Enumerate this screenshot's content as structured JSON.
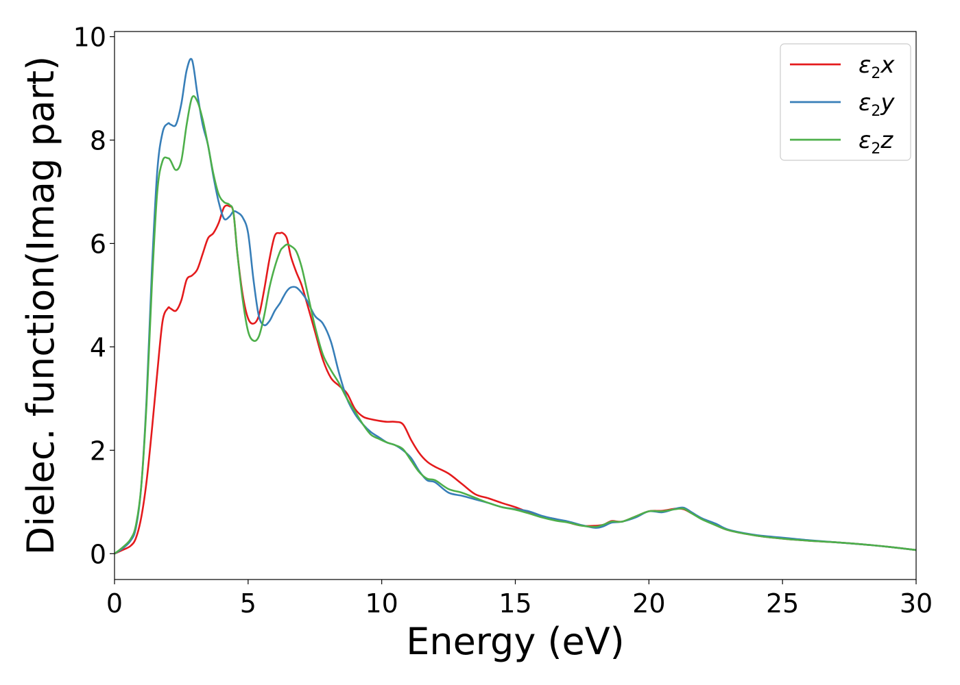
{
  "chart_data": {
    "type": "line",
    "title": "",
    "xlabel": "Energy (eV)",
    "ylabel": "Dielec. function(Imag part)",
    "xlim": [
      0,
      30
    ],
    "ylim": [
      -0.5,
      10.1
    ],
    "xticks": [
      0,
      5,
      10,
      15,
      20,
      25,
      30
    ],
    "yticks": [
      0,
      2,
      4,
      6,
      8,
      10
    ],
    "grid": false,
    "legend_position": "top-right",
    "series": [
      {
        "name": "ε2x",
        "legend": {
          "base": "ε",
          "sub": "2",
          "suffix": "x"
        },
        "color": "#e41a1c",
        "x": [
          0,
          0.3,
          0.6,
          0.8,
          1.0,
          1.2,
          1.4,
          1.6,
          1.8,
          2.0,
          2.1,
          2.3,
          2.5,
          2.7,
          2.9,
          3.1,
          3.3,
          3.5,
          3.7,
          3.9,
          4.1,
          4.3,
          4.45,
          4.6,
          4.8,
          5.0,
          5.2,
          5.4,
          5.6,
          5.8,
          6.0,
          6.2,
          6.3,
          6.45,
          6.6,
          6.8,
          7.0,
          7.2,
          7.5,
          7.8,
          8.1,
          8.4,
          8.7,
          9.0,
          9.3,
          9.6,
          9.9,
          10.2,
          10.5,
          10.8,
          11.1,
          11.4,
          11.7,
          12.0,
          12.5,
          13.0,
          13.5,
          14.0,
          14.5,
          15.0,
          15.5,
          16.0,
          16.5,
          17.0,
          17.5,
          18.0,
          18.3,
          18.6,
          19.0,
          19.5,
          20.0,
          20.5,
          21.0,
          21.3,
          21.6,
          22.0,
          22.5,
          23.0,
          24.0,
          25.0,
          26.0,
          27.0,
          28.0,
          29.0,
          30.0
        ],
        "y": [
          0.0,
          0.07,
          0.15,
          0.3,
          0.7,
          1.4,
          2.4,
          3.5,
          4.5,
          4.75,
          4.74,
          4.7,
          4.9,
          5.3,
          5.38,
          5.5,
          5.8,
          6.1,
          6.2,
          6.4,
          6.7,
          6.72,
          6.6,
          5.8,
          5.0,
          4.55,
          4.45,
          4.6,
          5.1,
          5.7,
          6.15,
          6.2,
          6.2,
          6.1,
          5.75,
          5.45,
          5.2,
          4.85,
          4.3,
          3.75,
          3.4,
          3.25,
          3.1,
          2.8,
          2.65,
          2.6,
          2.57,
          2.55,
          2.55,
          2.5,
          2.2,
          1.95,
          1.78,
          1.68,
          1.55,
          1.35,
          1.15,
          1.07,
          0.98,
          0.9,
          0.8,
          0.72,
          0.67,
          0.6,
          0.54,
          0.54,
          0.56,
          0.63,
          0.62,
          0.72,
          0.82,
          0.83,
          0.87,
          0.86,
          0.78,
          0.67,
          0.55,
          0.45,
          0.35,
          0.29,
          0.25,
          0.22,
          0.18,
          0.13,
          0.07
        ]
      },
      {
        "name": "ε2y",
        "legend": {
          "base": "ε",
          "sub": "2",
          "suffix": "y"
        },
        "color": "#377eb8",
        "x": [
          0,
          0.3,
          0.6,
          0.8,
          1.0,
          1.2,
          1.4,
          1.6,
          1.8,
          2.0,
          2.1,
          2.3,
          2.5,
          2.7,
          2.9,
          3.1,
          3.3,
          3.5,
          3.7,
          3.9,
          4.1,
          4.3,
          4.45,
          4.6,
          4.8,
          5.0,
          5.2,
          5.4,
          5.6,
          5.8,
          6.0,
          6.2,
          6.3,
          6.45,
          6.6,
          6.8,
          7.0,
          7.2,
          7.5,
          7.8,
          8.1,
          8.4,
          8.7,
          9.0,
          9.3,
          9.6,
          9.9,
          10.2,
          10.5,
          10.8,
          11.1,
          11.4,
          11.7,
          12.0,
          12.5,
          13.0,
          13.5,
          14.0,
          14.5,
          15.0,
          15.5,
          16.0,
          16.5,
          17.0,
          17.5,
          18.0,
          18.3,
          18.6,
          19.0,
          19.5,
          20.0,
          20.5,
          21.0,
          21.3,
          21.6,
          22.0,
          22.5,
          23.0,
          24.0,
          25.0,
          26.0,
          27.0,
          28.0,
          29.0,
          30.0
        ],
        "y": [
          0.0,
          0.1,
          0.25,
          0.5,
          1.3,
          3.0,
          5.5,
          7.4,
          8.15,
          8.32,
          8.3,
          8.3,
          8.7,
          9.35,
          9.55,
          8.9,
          8.3,
          7.9,
          7.3,
          6.8,
          6.48,
          6.52,
          6.62,
          6.6,
          6.5,
          6.2,
          5.3,
          4.6,
          4.42,
          4.5,
          4.7,
          4.85,
          4.95,
          5.08,
          5.15,
          5.15,
          5.05,
          4.9,
          4.6,
          4.45,
          4.1,
          3.5,
          3.0,
          2.7,
          2.5,
          2.35,
          2.25,
          2.15,
          2.1,
          2.0,
          1.85,
          1.6,
          1.42,
          1.38,
          1.18,
          1.12,
          1.05,
          0.98,
          0.9,
          0.86,
          0.82,
          0.73,
          0.67,
          0.62,
          0.55,
          0.5,
          0.53,
          0.6,
          0.62,
          0.7,
          0.82,
          0.8,
          0.87,
          0.89,
          0.8,
          0.68,
          0.58,
          0.46,
          0.36,
          0.31,
          0.26,
          0.22,
          0.18,
          0.13,
          0.07
        ]
      },
      {
        "name": "ε2z",
        "legend": {
          "base": "ε",
          "sub": "2",
          "suffix": "z"
        },
        "color": "#4daf4a",
        "x": [
          0,
          0.3,
          0.6,
          0.8,
          1.0,
          1.2,
          1.4,
          1.6,
          1.8,
          2.0,
          2.1,
          2.3,
          2.5,
          2.7,
          2.9,
          3.1,
          3.3,
          3.5,
          3.7,
          3.9,
          4.1,
          4.3,
          4.45,
          4.6,
          4.8,
          5.0,
          5.2,
          5.4,
          5.6,
          5.8,
          6.0,
          6.2,
          6.3,
          6.45,
          6.6,
          6.8,
          7.0,
          7.2,
          7.5,
          7.8,
          8.1,
          8.4,
          8.7,
          9.0,
          9.3,
          9.6,
          9.9,
          10.2,
          10.5,
          10.8,
          11.1,
          11.4,
          11.7,
          12.0,
          12.5,
          13.0,
          13.5,
          14.0,
          14.5,
          15.0,
          15.5,
          16.0,
          16.5,
          17.0,
          17.5,
          18.0,
          18.3,
          18.6,
          19.0,
          19.5,
          20.0,
          20.5,
          21.0,
          21.3,
          21.6,
          22.0,
          22.5,
          23.0,
          24.0,
          25.0,
          26.0,
          27.0,
          28.0,
          29.0,
          30.0
        ],
        "y": [
          0.0,
          0.12,
          0.28,
          0.55,
          1.3,
          2.9,
          5.2,
          7.0,
          7.6,
          7.65,
          7.6,
          7.42,
          7.6,
          8.3,
          8.82,
          8.75,
          8.4,
          7.9,
          7.35,
          6.95,
          6.8,
          6.75,
          6.6,
          5.8,
          4.9,
          4.3,
          4.12,
          4.2,
          4.6,
          5.15,
          5.55,
          5.85,
          5.92,
          5.98,
          5.95,
          5.85,
          5.55,
          5.1,
          4.4,
          3.85,
          3.55,
          3.3,
          3.0,
          2.75,
          2.5,
          2.3,
          2.22,
          2.15,
          2.1,
          2.02,
          1.8,
          1.58,
          1.45,
          1.42,
          1.25,
          1.18,
          1.08,
          0.98,
          0.9,
          0.85,
          0.78,
          0.7,
          0.64,
          0.6,
          0.54,
          0.52,
          0.56,
          0.62,
          0.62,
          0.72,
          0.82,
          0.82,
          0.86,
          0.87,
          0.78,
          0.66,
          0.55,
          0.45,
          0.35,
          0.29,
          0.25,
          0.22,
          0.18,
          0.13,
          0.07
        ]
      }
    ]
  }
}
